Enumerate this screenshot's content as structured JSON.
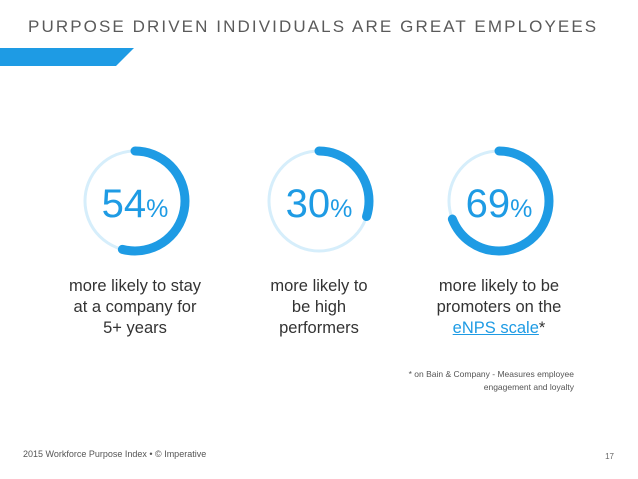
{
  "slide": {
    "title": "PURPOSE DRIVEN INDIVIDUALS ARE GREAT EMPLOYEES",
    "accent_color": "#1e9be4",
    "ring_track_color": "#d6eefb"
  },
  "stats": [
    {
      "value": "54",
      "unit": "%",
      "fraction": 0.54,
      "caption_lines": [
        "more likely to stay",
        "at a company for",
        "5+ years"
      ]
    },
    {
      "value": "30",
      "unit": "%",
      "fraction": 0.3,
      "caption_lines": [
        "more likely to",
        "be high",
        "performers"
      ]
    },
    {
      "value": "69",
      "unit": "%",
      "fraction": 0.69,
      "caption_lines": [
        "more likely to be",
        "promoters on the"
      ],
      "caption_link": "eNPS scale",
      "caption_suffix": "*"
    }
  ],
  "footnote": {
    "line1": "* on Bain & Company -  Measures employee",
    "line2": "engagement and loyalty"
  },
  "footer": {
    "source": "2015 Workforce Purpose Index • © Imperative",
    "page_number": "17"
  }
}
